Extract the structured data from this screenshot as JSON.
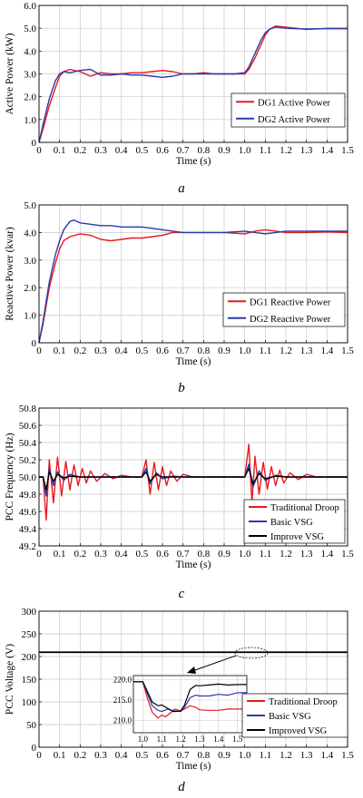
{
  "chart_data": [
    {
      "type": "line",
      "panel_label": "a",
      "xlabel": "Time (s)",
      "ylabel": "Active Power (kW)",
      "xlim": [
        0,
        1.5
      ],
      "ylim": [
        0,
        6.0
      ],
      "xticks": [
        "0",
        "0.1",
        "0.2",
        "0.3",
        "0.4",
        "0.5",
        "0.6",
        "0.7",
        "0.8",
        "0.9",
        "1.0",
        "1.1",
        "1.2",
        "1.3",
        "1.4",
        "1.5"
      ],
      "yticks": [
        "0",
        "1.0",
        "2.0",
        "3.0",
        "4.0",
        "5.0",
        "6.0"
      ],
      "grid": true,
      "legend_position": "lower-right",
      "series": [
        {
          "name": "DG1 Active Power",
          "color": "#e8191e",
          "x": [
            0,
            0.02,
            0.05,
            0.08,
            0.1,
            0.12,
            0.15,
            0.2,
            0.25,
            0.3,
            0.35,
            0.4,
            0.45,
            0.5,
            0.55,
            0.6,
            0.65,
            0.7,
            0.75,
            0.8,
            0.85,
            0.9,
            0.95,
            1.0,
            1.02,
            1.05,
            1.08,
            1.1,
            1.12,
            1.15,
            1.2,
            1.25,
            1.3,
            1.35,
            1.4,
            1.45,
            1.5
          ],
          "y": [
            0,
            0.6,
            1.6,
            2.4,
            2.9,
            3.1,
            3.2,
            3.1,
            2.9,
            3.05,
            3.0,
            3.0,
            3.05,
            3.05,
            3.1,
            3.15,
            3.1,
            3.0,
            3.0,
            3.05,
            3.0,
            3.0,
            3.0,
            3.0,
            3.2,
            3.7,
            4.3,
            4.7,
            4.95,
            5.1,
            5.05,
            5.0,
            4.95,
            4.97,
            5.0,
            5.0,
            5.0
          ]
        },
        {
          "name": "DG2 Active Power",
          "color": "#2b3bab",
          "x": [
            0,
            0.02,
            0.05,
            0.08,
            0.1,
            0.12,
            0.15,
            0.2,
            0.25,
            0.3,
            0.35,
            0.4,
            0.45,
            0.5,
            0.55,
            0.6,
            0.65,
            0.7,
            0.75,
            0.8,
            0.85,
            0.9,
            0.95,
            1.0,
            1.02,
            1.05,
            1.08,
            1.1,
            1.12,
            1.15,
            1.2,
            1.25,
            1.3,
            1.35,
            1.4,
            1.45,
            1.5
          ],
          "y": [
            0,
            0.8,
            1.9,
            2.7,
            3.0,
            3.1,
            3.05,
            3.15,
            3.2,
            2.95,
            2.95,
            3.0,
            2.95,
            2.95,
            2.9,
            2.85,
            2.9,
            3.0,
            3.0,
            3.0,
            3.0,
            3.0,
            3.0,
            3.05,
            3.3,
            3.9,
            4.5,
            4.8,
            4.95,
            5.05,
            5.0,
            4.98,
            4.97,
            4.98,
            4.98,
            4.98,
            4.98
          ]
        }
      ]
    },
    {
      "type": "line",
      "panel_label": "b",
      "xlabel": "Time (s)",
      "ylabel": "Reactive Power (kvar)",
      "xlim": [
        0,
        1.5
      ],
      "ylim": [
        0,
        5.0
      ],
      "xticks": [
        "0",
        "0.1",
        "0.2",
        "0.3",
        "0.4",
        "0.5",
        "0.6",
        "0.7",
        "0.8",
        "0.9",
        "1.0",
        "1.1",
        "1.2",
        "1.3",
        "1.4",
        "1.5"
      ],
      "yticks": [
        "0",
        "1.0",
        "2.0",
        "3.0",
        "4.0",
        "5.0"
      ],
      "grid": true,
      "legend_position": "lower-right",
      "series": [
        {
          "name": "DG1 Reactive Power",
          "color": "#e8191e",
          "x": [
            0,
            0.02,
            0.05,
            0.08,
            0.1,
            0.12,
            0.15,
            0.2,
            0.25,
            0.3,
            0.35,
            0.4,
            0.45,
            0.5,
            0.55,
            0.6,
            0.65,
            0.7,
            0.8,
            0.9,
            1.0,
            1.05,
            1.1,
            1.15,
            1.2,
            1.3,
            1.4,
            1.5
          ],
          "y": [
            0,
            0.7,
            2.0,
            2.9,
            3.4,
            3.7,
            3.85,
            3.95,
            3.9,
            3.75,
            3.7,
            3.75,
            3.8,
            3.8,
            3.85,
            3.9,
            4.0,
            4.0,
            4.0,
            4.0,
            3.95,
            4.05,
            4.1,
            4.05,
            4.0,
            4.0,
            4.02,
            4.0
          ]
        },
        {
          "name": "DG2 Reactive Power",
          "color": "#2b3bab",
          "x": [
            0,
            0.02,
            0.05,
            0.08,
            0.1,
            0.12,
            0.15,
            0.17,
            0.2,
            0.25,
            0.3,
            0.35,
            0.4,
            0.45,
            0.5,
            0.55,
            0.6,
            0.65,
            0.7,
            0.8,
            0.9,
            1.0,
            1.05,
            1.1,
            1.15,
            1.2,
            1.3,
            1.4,
            1.5
          ],
          "y": [
            0,
            0.8,
            2.2,
            3.2,
            3.7,
            4.1,
            4.4,
            4.45,
            4.35,
            4.3,
            4.25,
            4.25,
            4.2,
            4.2,
            4.2,
            4.15,
            4.1,
            4.05,
            4.0,
            4.0,
            4.0,
            4.05,
            4.0,
            3.95,
            4.0,
            4.05,
            4.05,
            4.05,
            4.05
          ]
        }
      ]
    },
    {
      "type": "line",
      "panel_label": "c",
      "xlabel": "Time (s)",
      "ylabel": "PCC Frequency (Hz)",
      "xlim": [
        0,
        1.5
      ],
      "ylim": [
        49.2,
        50.8
      ],
      "xticks": [
        "0",
        "0.1",
        "0.2",
        "0.3",
        "0.4",
        "0.5",
        "0.6",
        "0.7",
        "0.8",
        "0.9",
        "1.0",
        "1.1",
        "1.2",
        "1.3",
        "1.4",
        "1.5"
      ],
      "yticks": [
        "49.2",
        "49.4",
        "49.6",
        "49.8",
        "50.0",
        "50.2",
        "50.4",
        "50.6",
        "50.8"
      ],
      "grid": true,
      "legend_position": "lower-right",
      "series": [
        {
          "name": "Traditional Droop",
          "color": "#e8191e",
          "x": [
            0,
            0.02,
            0.035,
            0.05,
            0.07,
            0.09,
            0.11,
            0.13,
            0.15,
            0.17,
            0.19,
            0.21,
            0.23,
            0.25,
            0.28,
            0.32,
            0.36,
            0.4,
            0.45,
            0.5,
            0.52,
            0.54,
            0.56,
            0.58,
            0.6,
            0.62,
            0.64,
            0.67,
            0.7,
            0.75,
            0.8,
            0.85,
            0.9,
            0.95,
            1.0,
            1.02,
            1.035,
            1.05,
            1.07,
            1.09,
            1.11,
            1.13,
            1.15,
            1.17,
            1.19,
            1.22,
            1.26,
            1.3,
            1.35,
            1.4,
            1.45,
            1.5
          ],
          "y": [
            50.0,
            50.0,
            49.5,
            50.2,
            49.7,
            50.23,
            49.78,
            50.18,
            49.85,
            50.14,
            49.9,
            50.1,
            49.93,
            50.07,
            49.95,
            50.04,
            49.98,
            50.02,
            50.0,
            50.0,
            50.2,
            49.8,
            50.17,
            49.85,
            50.12,
            49.9,
            50.07,
            49.95,
            50.03,
            50.0,
            50.0,
            50.0,
            50.0,
            50.0,
            50.0,
            50.38,
            49.7,
            50.24,
            49.8,
            50.17,
            49.86,
            50.12,
            49.9,
            50.08,
            49.93,
            50.05,
            49.97,
            50.03,
            50.0,
            50.0,
            50.0,
            50.0
          ]
        },
        {
          "name": "Basic VSG",
          "color": "#2b3bab",
          "x": [
            0,
            0.02,
            0.035,
            0.05,
            0.07,
            0.09,
            0.12,
            0.15,
            0.2,
            0.25,
            0.3,
            0.4,
            0.5,
            0.52,
            0.54,
            0.57,
            0.6,
            0.65,
            0.7,
            0.8,
            0.9,
            1.0,
            1.02,
            1.04,
            1.07,
            1.1,
            1.15,
            1.2,
            1.3,
            1.4,
            1.5
          ],
          "y": [
            50.0,
            50.0,
            49.78,
            50.1,
            49.9,
            50.06,
            49.96,
            50.03,
            50.0,
            50.0,
            50.0,
            50.0,
            50.0,
            50.1,
            49.92,
            50.05,
            49.98,
            50.01,
            50.0,
            50.0,
            50.0,
            50.0,
            50.15,
            49.88,
            50.07,
            49.96,
            50.02,
            50.0,
            50.0,
            50.0,
            50.0
          ]
        },
        {
          "name": "Improve VSG",
          "color": "#000000",
          "x": [
            0,
            0.02,
            0.035,
            0.05,
            0.07,
            0.09,
            0.12,
            0.15,
            0.2,
            0.3,
            0.4,
            0.5,
            0.52,
            0.54,
            0.57,
            0.6,
            0.7,
            0.8,
            0.9,
            1.0,
            1.02,
            1.04,
            1.07,
            1.1,
            1.15,
            1.2,
            1.3,
            1.4,
            1.5
          ],
          "y": [
            50.0,
            50.0,
            49.85,
            50.06,
            49.95,
            50.03,
            49.99,
            50.01,
            50.0,
            50.0,
            50.0,
            50.0,
            50.06,
            49.95,
            50.03,
            50.0,
            50.0,
            50.0,
            50.0,
            50.0,
            50.1,
            49.92,
            50.04,
            49.98,
            50.01,
            50.0,
            50.0,
            50.0,
            50.0
          ]
        }
      ]
    },
    {
      "type": "line",
      "panel_label": "d",
      "xlabel": "Time (s)",
      "ylabel": "PCC Voltage (V)",
      "xlim": [
        0,
        1.5
      ],
      "ylim": [
        0,
        300
      ],
      "xticks": [
        "0",
        "0.1",
        "0.2",
        "0.3",
        "0.4",
        "0.5",
        "0.6",
        "0.7",
        "0.8",
        "0.9",
        "1.0",
        "1.1",
        "1.2",
        "1.3",
        "1.4",
        "1.5"
      ],
      "yticks": [
        "0",
        "50",
        "100",
        "150",
        "200",
        "250",
        "300"
      ],
      "grid": true,
      "legend_position": "lower-right",
      "series": [
        {
          "name": "Traditional Droop",
          "color": "#e8191e",
          "x": [
            0,
            1.5
          ],
          "y": [
            209,
            209
          ]
        },
        {
          "name": "Basic VSG",
          "color": "#2b3bab",
          "x": [
            0,
            1.5
          ],
          "y": [
            210,
            210
          ]
        },
        {
          "name": "Improved VSG",
          "color": "#000000",
          "x": [
            0,
            1.5
          ],
          "y": [
            209.5,
            209.5
          ]
        }
      ],
      "inset": {
        "xlim": [
          0.95,
          1.55
        ],
        "ylim": [
          207,
          221
        ],
        "xticks": [
          "1.0",
          "1.1",
          "1.2",
          "1.3",
          "1.4",
          "1.5"
        ],
        "yticks": [
          "210.0",
          "215.0",
          "220.0"
        ],
        "series": [
          {
            "name": "Traditional Droop",
            "color": "#e8191e",
            "x": [
              0.95,
              1.0,
              1.02,
              1.05,
              1.08,
              1.1,
              1.12,
              1.15,
              1.17,
              1.2,
              1.22,
              1.25,
              1.28,
              1.3,
              1.35,
              1.4,
              1.45,
              1.5,
              1.55
            ],
            "y": [
              219.5,
              219.5,
              216,
              212,
              210.6,
              211.3,
              210.9,
              212,
              212.8,
              212.3,
              212.8,
              213.6,
              213.2,
              212.6,
              212.5,
              212.5,
              212.8,
              212.8,
              212.8
            ]
          },
          {
            "name": "Basic VSG",
            "color": "#2b3bab",
            "x": [
              0.95,
              1.0,
              1.02,
              1.05,
              1.08,
              1.1,
              1.13,
              1.16,
              1.2,
              1.22,
              1.25,
              1.28,
              1.3,
              1.35,
              1.4,
              1.45,
              1.5,
              1.55
            ],
            "y": [
              219.5,
              219.5,
              217,
              213.6,
              212.5,
              212.2,
              212.8,
              212.4,
              212.2,
              213.2,
              215.6,
              216.2,
              216.0,
              216.0,
              216.4,
              216.2,
              216.8,
              216.8
            ]
          },
          {
            "name": "Improved VSG",
            "color": "#000000",
            "x": [
              0.95,
              1.0,
              1.02,
              1.05,
              1.08,
              1.1,
              1.13,
              1.16,
              1.2,
              1.22,
              1.25,
              1.28,
              1.3,
              1.35,
              1.4,
              1.45,
              1.5,
              1.55
            ],
            "y": [
              219.5,
              219.5,
              217.5,
              214.5,
              213.6,
              213.8,
              213.0,
              212.2,
              212.3,
              213.8,
              217.6,
              218.6,
              218.5,
              218.7,
              218.9,
              218.7,
              218.8,
              218.8
            ]
          }
        ]
      }
    }
  ]
}
